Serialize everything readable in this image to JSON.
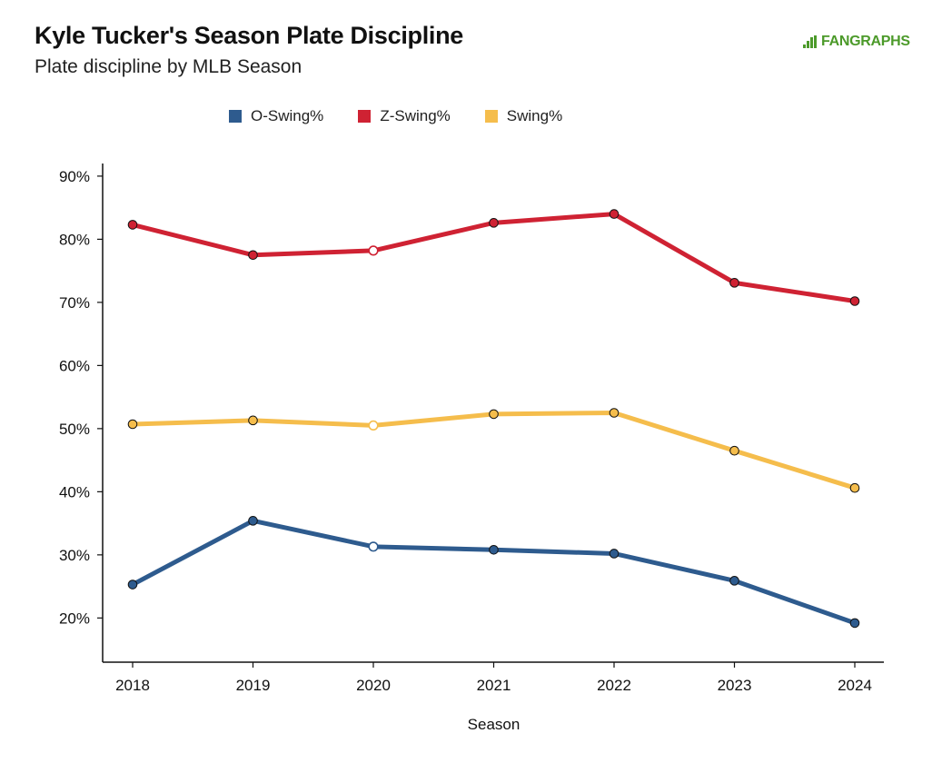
{
  "header": {
    "title": "Kyle Tucker's Season Plate Discipline",
    "subtitle": "Plate discipline by MLB Season",
    "logo_text": "FANGRAPHS",
    "logo_color": "#4c9a2a"
  },
  "chart_data": {
    "type": "line",
    "title": "Kyle Tucker's Season Plate Discipline",
    "subtitle": "Plate discipline by MLB Season",
    "xlabel": "Season",
    "ylabel": "",
    "categories": [
      "2018",
      "2019",
      "2020",
      "2021",
      "2022",
      "2023",
      "2024"
    ],
    "ylim": [
      13,
      92
    ],
    "y_ticks": [
      20,
      30,
      40,
      50,
      60,
      70,
      80,
      90
    ],
    "y_tick_labels": [
      "20%",
      "30%",
      "40%",
      "50%",
      "60%",
      "70%",
      "80%",
      "90%"
    ],
    "grid": false,
    "legend_position": "top",
    "hollow_marker_category": "2020",
    "series": [
      {
        "name": "O-Swing%",
        "color": "#2e5b8e",
        "values": [
          25.3,
          35.4,
          31.3,
          30.8,
          30.2,
          25.9,
          19.2
        ]
      },
      {
        "name": "Z-Swing%",
        "color": "#cf2233",
        "values": [
          82.3,
          77.5,
          78.2,
          82.6,
          84.0,
          73.1,
          70.2
        ]
      },
      {
        "name": "Swing%",
        "color": "#f5bd4c",
        "values": [
          50.7,
          51.3,
          50.5,
          52.3,
          52.5,
          46.5,
          40.6
        ]
      }
    ]
  }
}
